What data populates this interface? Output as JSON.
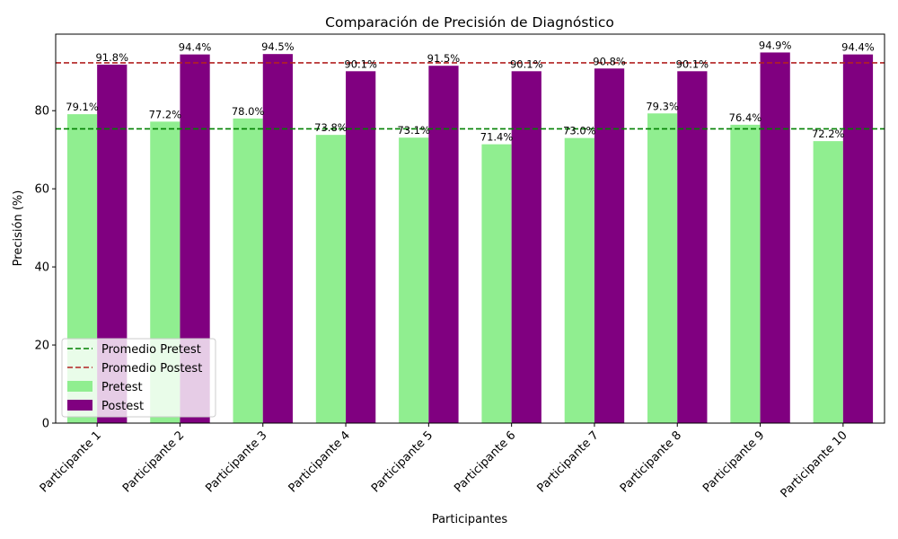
{
  "chart_data": {
    "type": "bar",
    "title": "Comparación de Precisión de Diagnóstico",
    "xlabel": "Participantes",
    "ylabel": "Precisión (%)",
    "ylim": [
      0,
      99.6
    ],
    "yticks": [
      0,
      20,
      40,
      60,
      80
    ],
    "categories": [
      "Participante 1",
      "Participante 2",
      "Participante 3",
      "Participante 4",
      "Participante 5",
      "Participante 6",
      "Participante 7",
      "Participante 8",
      "Participante 9",
      "Participante 10"
    ],
    "series": [
      {
        "name": "Pretest",
        "color": "#90ee90",
        "values": [
          79.1,
          77.2,
          78.0,
          73.8,
          73.1,
          71.4,
          73.0,
          79.3,
          76.4,
          72.2
        ],
        "labels": [
          "79.1%",
          "77.2%",
          "78.0%",
          "73.8%",
          "73.1%",
          "71.4%",
          "73.0%",
          "79.3%",
          "76.4%",
          "72.2%"
        ]
      },
      {
        "name": "Postest",
        "color": "#800080",
        "values": [
          91.8,
          94.4,
          94.5,
          90.1,
          91.5,
          90.1,
          90.8,
          90.1,
          94.9,
          94.4
        ],
        "labels": [
          "91.8%",
          "94.4%",
          "94.5%",
          "90.1%",
          "91.5%",
          "90.1%",
          "90.8%",
          "90.1%",
          "94.9%",
          "94.4%"
        ]
      }
    ],
    "reference_lines": [
      {
        "name": "Promedio Pretest",
        "value": 75.35,
        "color": "#008000",
        "style": "dashed"
      },
      {
        "name": "Promedio Postest",
        "value": 92.26,
        "color": "#b22222",
        "style": "dashed"
      }
    ],
    "legend": {
      "position": "lower-left",
      "entries": [
        {
          "label": "Promedio Pretest",
          "kind": "line",
          "color": "#008000"
        },
        {
          "label": "Promedio Postest",
          "kind": "line",
          "color": "#b22222"
        },
        {
          "label": "Pretest",
          "kind": "patch",
          "color": "#90ee90"
        },
        {
          "label": "Postest",
          "kind": "patch",
          "color": "#800080"
        }
      ]
    }
  }
}
